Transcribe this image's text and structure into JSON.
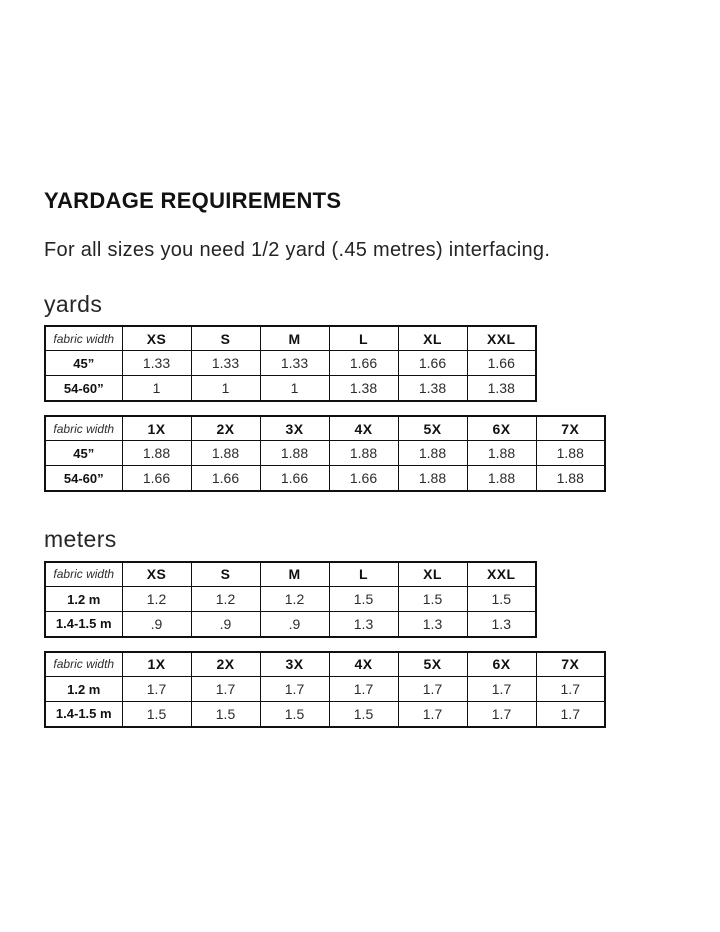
{
  "document": {
    "title": "YARDAGE REQUIREMENTS",
    "subtitle": "For all sizes you need 1/2 yard (.45 metres) interfacing.",
    "text_color": "#141414",
    "border_color": "#101010",
    "background_color": "#ffffff"
  },
  "sections": [
    {
      "label": "yards"
    },
    {
      "label": "meters"
    }
  ],
  "tables": [
    {
      "unit": "yards",
      "size_range": "standard",
      "corner_label": "fabric width",
      "size_headers": [
        "XS",
        "S",
        "M",
        "L",
        "XL",
        "XXL"
      ],
      "rows": [
        {
          "label": "45”",
          "values": [
            "1.33",
            "1.33",
            "1.33",
            "1.66",
            "1.66",
            "1.66"
          ]
        },
        {
          "label": "54-60”",
          "values": [
            "1",
            "1",
            "1",
            "1.38",
            "1.38",
            "1.38"
          ]
        }
      ]
    },
    {
      "unit": "yards",
      "size_range": "extended",
      "corner_label": "fabric width",
      "size_headers": [
        "1X",
        "2X",
        "3X",
        "4X",
        "5X",
        "6X",
        "7X"
      ],
      "rows": [
        {
          "label": "45”",
          "values": [
            "1.88",
            "1.88",
            "1.88",
            "1.88",
            "1.88",
            "1.88",
            "1.88"
          ]
        },
        {
          "label": "54-60”",
          "values": [
            "1.66",
            "1.66",
            "1.66",
            "1.66",
            "1.88",
            "1.88",
            "1.88"
          ]
        }
      ]
    },
    {
      "unit": "meters",
      "size_range": "standard",
      "corner_label": "fabric width",
      "size_headers": [
        "XS",
        "S",
        "M",
        "L",
        "XL",
        "XXL"
      ],
      "rows": [
        {
          "label": "1.2 m",
          "values": [
            "1.2",
            "1.2",
            "1.2",
            "1.5",
            "1.5",
            "1.5"
          ]
        },
        {
          "label": "1.4-1.5 m",
          "values": [
            ".9",
            ".9",
            ".9",
            "1.3",
            "1.3",
            "1.3"
          ]
        }
      ]
    },
    {
      "unit": "meters",
      "size_range": "extended",
      "corner_label": "fabric width",
      "size_headers": [
        "1X",
        "2X",
        "3X",
        "4X",
        "5X",
        "6X",
        "7X"
      ],
      "rows": [
        {
          "label": "1.2 m",
          "values": [
            "1.7",
            "1.7",
            "1.7",
            "1.7",
            "1.7",
            "1.7",
            "1.7"
          ]
        },
        {
          "label": "1.4-1.5 m",
          "values": [
            "1.5",
            "1.5",
            "1.5",
            "1.5",
            "1.7",
            "1.7",
            "1.7"
          ]
        }
      ]
    }
  ]
}
